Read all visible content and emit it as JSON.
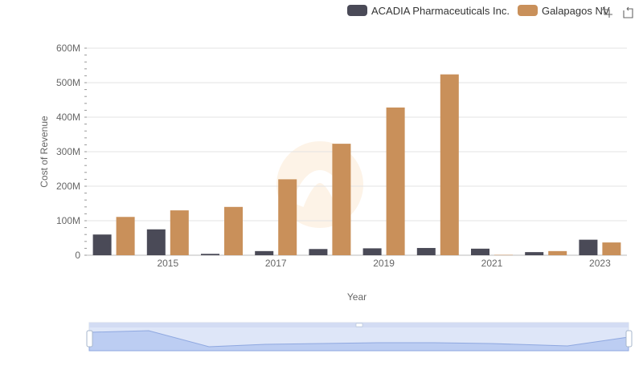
{
  "chart_data": {
    "type": "bar",
    "title": "",
    "xlabel": "Year",
    "ylabel": "Cost of Revenue",
    "categories": [
      "2014",
      "2015",
      "2016",
      "2017",
      "2018",
      "2019",
      "2020",
      "2021",
      "2022",
      "2023"
    ],
    "x_tick_labels": [
      "2015",
      "2017",
      "2019",
      "2021",
      "2023"
    ],
    "y_tick_labels": [
      "0",
      "100M",
      "200M",
      "300M",
      "400M",
      "500M",
      "600M"
    ],
    "ylim": [
      0,
      600000000
    ],
    "grid": true,
    "legend_position": "top-right",
    "series": [
      {
        "name": "ACADIA Pharmaceuticals Inc.",
        "color": "#4a4a57",
        "values": [
          60000000,
          75000000,
          4000000,
          12000000,
          18000000,
          20000000,
          21000000,
          19000000,
          9000000,
          45000000
        ]
      },
      {
        "name": "Galapagos NV",
        "color": "#c9905a",
        "values": [
          111000000,
          130000000,
          140000000,
          220000000,
          323000000,
          428000000,
          524000000,
          1000000,
          12000000,
          37000000
        ]
      }
    ]
  },
  "toolbox": {
    "icons": [
      "zoom-icon",
      "restore-icon"
    ]
  }
}
